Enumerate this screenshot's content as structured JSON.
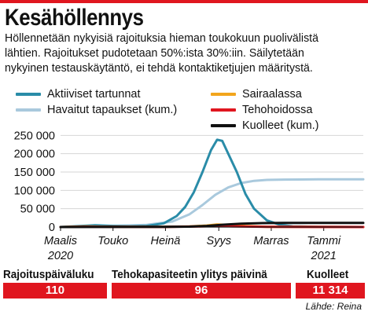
{
  "title": "Kesähöllennys",
  "intro": [
    "Höllennetään nykyisiä rajoituksia hieman toukokuun puolivälistä",
    "lähtien. Rajoitukset pudotetaan 50%:ista 30%:iin. Säilytetään",
    "nykyinen testauskäytäntö, ei tehdä kontaktiketjujen määritystä."
  ],
  "legend_left": [
    {
      "label": "Aktiiviset tartunnat",
      "color": "#2a8ca8"
    },
    {
      "label": "Havaitut tapaukset (kum.)",
      "color": "#a9c9dd"
    }
  ],
  "legend_right": [
    {
      "label": "Sairaalassa",
      "color": "#f2a51c"
    },
    {
      "label": "Tehohoidossa",
      "color": "#e0161f"
    },
    {
      "label": "Kuolleet (kum.)",
      "color": "#111111"
    }
  ],
  "chart_data": {
    "type": "line",
    "x_ticks": [
      {
        "t": 0,
        "label": "Maalis",
        "sub": "2020"
      },
      {
        "t": 61,
        "label": "Touko",
        "sub": ""
      },
      {
        "t": 122,
        "label": "Heinä",
        "sub": ""
      },
      {
        "t": 184,
        "label": "Syys",
        "sub": ""
      },
      {
        "t": 245,
        "label": "Marras",
        "sub": ""
      },
      {
        "t": 306,
        "label": "Tammi",
        "sub": "2021"
      }
    ],
    "x_range": [
      0,
      352
    ],
    "y_ticks": [
      0,
      50000,
      100000,
      150000,
      200000,
      250000
    ],
    "y_tick_labels": [
      "0",
      "50 000",
      "100 000",
      "150 000",
      "200 000",
      "250 000"
    ],
    "ylim": [
      0,
      255000
    ],
    "series": [
      {
        "name": "Aktiiviset tartunnat",
        "color": "#2a8ca8",
        "x": [
          0,
          40,
          61,
          80,
          100,
          120,
          135,
          145,
          155,
          165,
          175,
          182,
          188,
          195,
          205,
          215,
          225,
          240,
          255,
          270,
          300,
          352
        ],
        "y": [
          0,
          5000,
          3000,
          2000,
          3000,
          10000,
          30000,
          55000,
          95000,
          150000,
          210000,
          238000,
          235000,
          200000,
          150000,
          90000,
          50000,
          18000,
          6000,
          2000,
          500,
          0
        ]
      },
      {
        "name": "Havaitut tapaukset (kum.)",
        "color": "#a9c9dd",
        "x": [
          0,
          61,
          100,
          130,
          150,
          165,
          180,
          195,
          210,
          225,
          240,
          260,
          300,
          352
        ],
        "y": [
          0,
          3000,
          6000,
          15000,
          35000,
          60000,
          88000,
          108000,
          120000,
          126000,
          128500,
          129500,
          130000,
          130000
        ]
      },
      {
        "name": "Sairaalassa",
        "color": "#f2a51c",
        "x": [
          0,
          30,
          61,
          120,
          150,
          170,
          182,
          195,
          215,
          240,
          352
        ],
        "y": [
          0,
          1500,
          800,
          500,
          1500,
          4000,
          7000,
          5500,
          2500,
          700,
          0
        ]
      },
      {
        "name": "Tehohoidossa",
        "color": "#e0161f",
        "x": [
          0,
          30,
          61,
          120,
          160,
          182,
          200,
          240,
          352
        ],
        "y": [
          0,
          800,
          400,
          300,
          1500,
          3000,
          2000,
          500,
          0
        ]
      },
      {
        "name": "Kuolleet (kum.)",
        "color": "#111111",
        "x": [
          0,
          61,
          120,
          150,
          170,
          190,
          210,
          235,
          260,
          352
        ],
        "y": [
          0,
          200,
          400,
          1000,
          3000,
          6500,
          9000,
          10700,
          11200,
          11314
        ]
      }
    ]
  },
  "stats": [
    {
      "label": "Rajoituspäiväluku",
      "value": "110"
    },
    {
      "label": "Tehokapasiteetin ylitys päivinä",
      "value": "96"
    },
    {
      "label": "Kuolleet",
      "value": "11 314"
    }
  ],
  "source": "Lähde: Reina"
}
